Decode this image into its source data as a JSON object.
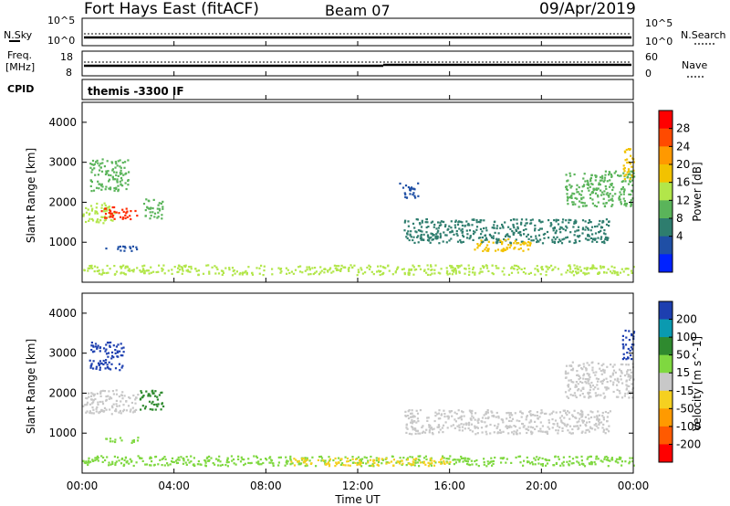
{
  "header": {
    "station": "Fort Hays East (fitACF)",
    "beam": "Beam 07",
    "date": "09/Apr/2019"
  },
  "top_panel": {
    "left_label": "N.Sky",
    "right_label": "N.Search",
    "y_ticks": [
      "10^5",
      "10^0"
    ],
    "right_ticks": [
      "10^5",
      "10^0"
    ]
  },
  "freq_panel": {
    "left_label_1": "Freq.",
    "left_label_2": "[MHz]",
    "right_label": "Nave",
    "y_ticks": [
      "18",
      "8"
    ],
    "right_ticks": [
      "60",
      "0"
    ]
  },
  "cpid": {
    "label": "CPID",
    "value": "themis -3300 IF"
  },
  "x_axis": {
    "title": "Time UT",
    "ticks": [
      "00:00",
      "04:00",
      "08:00",
      "12:00",
      "16:00",
      "20:00",
      "00:00"
    ]
  },
  "power_colorbar": {
    "label": "Power [dB]",
    "ticks": [
      "28",
      "24",
      "20",
      "16",
      "12",
      "8",
      "4"
    ],
    "colors": [
      "#ff0000",
      "#ff4a00",
      "#ff9900",
      "#f2c200",
      "#b2e64a",
      "#5ab45a",
      "#2e7d6e",
      "#1f4fa5",
      "#0022ff"
    ]
  },
  "velocity_colorbar": {
    "label": "Velocity [m s^-1]",
    "ticks": [
      "200",
      "100",
      "50",
      "15",
      "-15",
      "-50",
      "-100",
      "-200"
    ],
    "colors": [
      "#1d3fb0",
      "#0a9ab0",
      "#2f8a2f",
      "#7fd840",
      "#c8c8c8",
      "#f5d020",
      "#ff9a00",
      "#ff5a00",
      "#ff0000"
    ]
  },
  "chart_data": [
    {
      "type": "heatmap",
      "name": "power",
      "ylabel": "Slant Range [km]",
      "ylim": [
        0,
        4500
      ],
      "y_ticks": [
        1000,
        2000,
        3000,
        4000
      ],
      "xlim_hours": [
        0,
        24
      ],
      "regions": [
        {
          "t0": 0.0,
          "t1": 1.4,
          "r0": 1500,
          "r1": 2000,
          "color": "#b2e64a"
        },
        {
          "t0": 0.8,
          "t1": 2.4,
          "r0": 1600,
          "r1": 1900,
          "color": "#ff2a00"
        },
        {
          "t0": 0.3,
          "t1": 2.0,
          "r0": 2300,
          "r1": 3100,
          "color": "#5ab45a"
        },
        {
          "t0": 2.6,
          "t1": 3.5,
          "r0": 1600,
          "r1": 2100,
          "color": "#5ab45a"
        },
        {
          "t0": 1.0,
          "t1": 2.4,
          "r0": 780,
          "r1": 920,
          "color": "#1f4fa5"
        },
        {
          "t0": 0.0,
          "t1": 24.0,
          "r0": 200,
          "r1": 450,
          "color": "#b2e64a"
        },
        {
          "t0": 13.8,
          "t1": 14.6,
          "r0": 2100,
          "r1": 2500,
          "color": "#1f4fa5"
        },
        {
          "t0": 14.0,
          "t1": 23.0,
          "r0": 1000,
          "r1": 1600,
          "color": "#2e7d6e"
        },
        {
          "t0": 17.0,
          "t1": 19.5,
          "r0": 800,
          "r1": 1100,
          "color": "#f2c200"
        },
        {
          "t0": 21.0,
          "t1": 24.0,
          "r0": 1900,
          "r1": 2800,
          "color": "#5ab45a"
        },
        {
          "t0": 23.5,
          "t1": 24.0,
          "r0": 2600,
          "r1": 3400,
          "color": "#f2c200"
        }
      ]
    },
    {
      "type": "heatmap",
      "name": "velocity",
      "ylabel": "Slant Range [km]",
      "ylim": [
        0,
        4500
      ],
      "y_ticks": [
        1000,
        2000,
        3000,
        4000
      ],
      "xlim_hours": [
        0,
        24
      ],
      "regions": [
        {
          "t0": 0.3,
          "t1": 1.8,
          "r0": 2600,
          "r1": 3300,
          "color": "#1d3fb0"
        },
        {
          "t0": 0.0,
          "t1": 2.4,
          "r0": 1500,
          "r1": 2100,
          "color": "#c8c8c8"
        },
        {
          "t0": 2.4,
          "t1": 3.5,
          "r0": 1600,
          "r1": 2100,
          "color": "#2f8a2f"
        },
        {
          "t0": 1.0,
          "t1": 2.4,
          "r0": 780,
          "r1": 920,
          "color": "#7fd840"
        },
        {
          "t0": 0.0,
          "t1": 24.0,
          "r0": 200,
          "r1": 450,
          "color": "#7fd840"
        },
        {
          "t0": 9.0,
          "t1": 16.0,
          "r0": 200,
          "r1": 400,
          "color": "#f5d020"
        },
        {
          "t0": 14.0,
          "t1": 23.0,
          "r0": 1000,
          "r1": 1600,
          "color": "#c8c8c8"
        },
        {
          "t0": 21.0,
          "t1": 24.0,
          "r0": 1900,
          "r1": 2800,
          "color": "#c8c8c8"
        },
        {
          "t0": 23.5,
          "t1": 24.0,
          "r0": 2800,
          "r1": 3600,
          "color": "#1d3fb0"
        }
      ]
    }
  ]
}
